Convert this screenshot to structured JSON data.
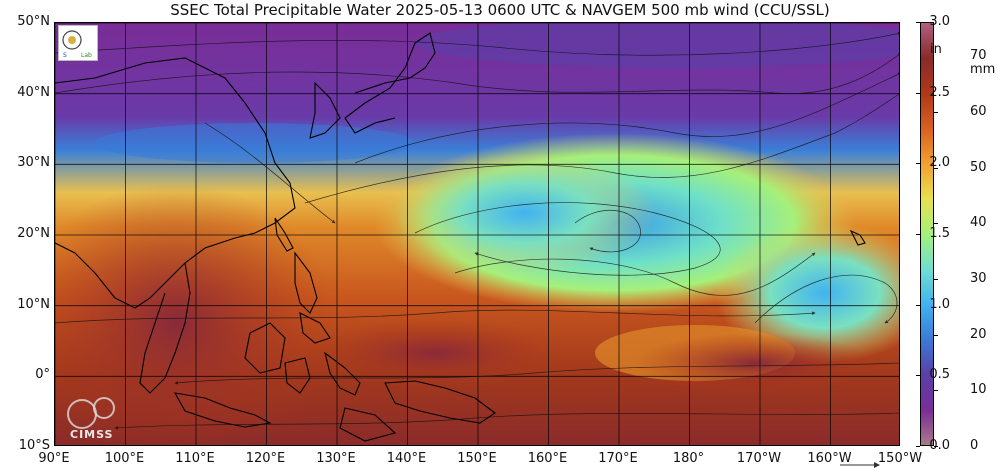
{
  "title": "SSEC Total Precipitable Water  2025-05-13 0600 UTC & NAVGEM 500 mb wind (CCU/SSL)",
  "map": {
    "lat_labels": [
      "50°N",
      "40°N",
      "30°N",
      "20°N",
      "10°N",
      "0°",
      "10°S"
    ],
    "lon_labels": [
      "90°E",
      "100°E",
      "110°E",
      "120°E",
      "130°E",
      "140°E",
      "150°E",
      "160°E",
      "170°E",
      "180°",
      "170°W",
      "160°W",
      "150°W"
    ],
    "lat_range": [
      -10,
      50
    ],
    "lon_range": [
      90,
      210
    ],
    "grid_step_deg": 10
  },
  "colorbar": {
    "in_unit": "in",
    "mm_unit_line1": "70",
    "mm_unit_line2": "mm",
    "in_ticks": [
      "3.0",
      "2.5",
      "2.0",
      "1.5",
      "1.0",
      "0.5",
      "0.0"
    ],
    "in_values": [
      3.0,
      2.5,
      2.0,
      1.5,
      1.0,
      0.5,
      0.0
    ],
    "mm_ticks": [
      "60",
      "50",
      "40",
      "30",
      "20",
      "10",
      "0"
    ],
    "mm_values": [
      60,
      50,
      40,
      30,
      20,
      10,
      0
    ],
    "mm_max": 76.2,
    "colors": [
      "#a87a8a",
      "#7a2d97",
      "#5a3fa8",
      "#3a7ad8",
      "#41b3f0",
      "#6fe0d0",
      "#a6f07a",
      "#e8e050",
      "#f2a030",
      "#d86020",
      "#b03818",
      "#8a2a2a",
      "#b06080"
    ]
  },
  "logos": {
    "ssec": "ssec-logo-icon",
    "cimss": "CIMSS"
  }
}
